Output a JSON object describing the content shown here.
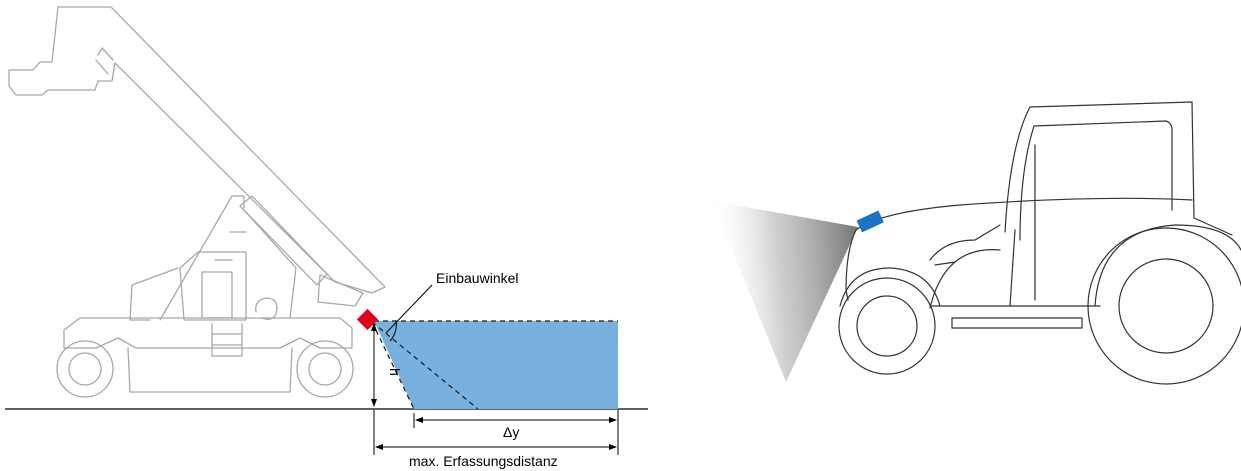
{
  "labels": {
    "mount_angle": "Einbauwinkel",
    "height": "h",
    "delta_y": "Δy",
    "max_distance": "max. Erfassungsdistanz"
  },
  "colors": {
    "detection_field": "#78b1de",
    "sensor_left": "#e0001a",
    "sensor_right": "#1a74c4",
    "vehicle_outline": "#a8a8a8",
    "tractor_outline": "#333333"
  },
  "icons": {
    "left_vehicle": "reach-stacker-icon",
    "right_vehicle": "tractor-icon",
    "left_sensor": "sensor-icon",
    "right_sensor": "sensor-icon"
  }
}
